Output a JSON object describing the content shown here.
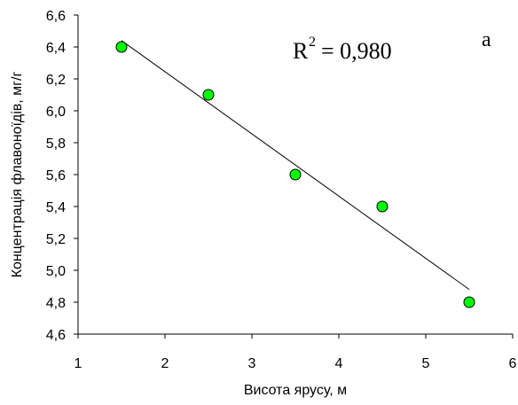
{
  "chart_data": {
    "type": "scatter",
    "x_label": "Висота ярусу, м",
    "y_label": "Концентрація флавоноїдів, мг/г",
    "series": [
      {
        "x": [
          1.5,
          2.5,
          3.5,
          4.5,
          5.5
        ],
        "values": [
          6.4,
          6.1,
          5.6,
          5.4,
          4.8
        ],
        "color": "#00ff00"
      }
    ],
    "trendline": {
      "x": [
        1.5,
        5.5
      ],
      "values": [
        6.44,
        4.88
      ],
      "color": "#000000"
    },
    "annotations": {
      "r": "R",
      "sup": "2",
      "value": "= 0,980",
      "panel": "a"
    },
    "xlim": [
      1,
      6
    ],
    "xticks": [
      1,
      2,
      3,
      4,
      5,
      6
    ],
    "ylim": [
      4.6,
      6.6
    ],
    "yticks": [
      {
        "value": 4.6,
        "label": "4,6"
      },
      {
        "value": 4.8,
        "label": "4,8"
      },
      {
        "value": 5.0,
        "label": "5,0"
      },
      {
        "value": 5.2,
        "label": "5,2"
      },
      {
        "value": 5.4,
        "label": "5,4"
      },
      {
        "value": 5.6,
        "label": "5,6"
      },
      {
        "value": 5.8,
        "label": "5,8"
      },
      {
        "value": 6.0,
        "label": "6,0"
      },
      {
        "value": 6.2,
        "label": "6,2"
      },
      {
        "value": 6.4,
        "label": "6,4"
      },
      {
        "value": 6.6,
        "label": "6,6"
      }
    ]
  }
}
